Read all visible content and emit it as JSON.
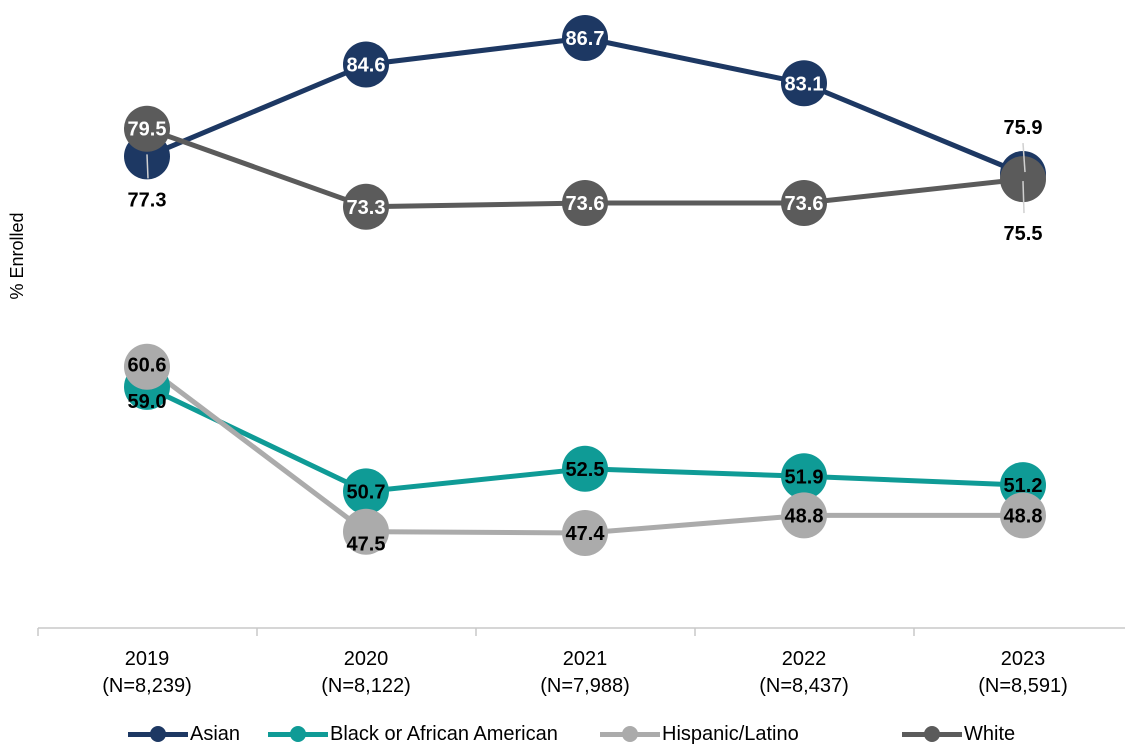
{
  "chart_data": {
    "type": "line",
    "ylabel": "% Enrolled",
    "xlabel": "",
    "categories": [
      {
        "year": "2019",
        "n": "(N=8,239)"
      },
      {
        "year": "2020",
        "n": "(N=8,122)"
      },
      {
        "year": "2021",
        "n": "(N=7,988)"
      },
      {
        "year": "2022",
        "n": "(N=8,437)"
      },
      {
        "year": "2023",
        "n": "(N=8,591)"
      }
    ],
    "series": [
      {
        "name": "Asian",
        "color": "#1d3863",
        "values": [
          77.3,
          84.6,
          86.7,
          83.1,
          75.9
        ]
      },
      {
        "name": "Black or African American",
        "color": "#0f9b96",
        "values": [
          59.0,
          50.7,
          52.5,
          51.9,
          51.2
        ]
      },
      {
        "name": "Hispanic/Latino",
        "color": "#ababab",
        "values": [
          60.6,
          47.5,
          47.4,
          48.8,
          48.8
        ]
      },
      {
        "name": "White",
        "color": "#5b5b5b",
        "values": [
          79.5,
          73.3,
          73.6,
          73.6,
          75.5
        ]
      }
    ],
    "ylim": [
      38,
      92
    ],
    "grid": false,
    "legend_position": "bottom"
  }
}
